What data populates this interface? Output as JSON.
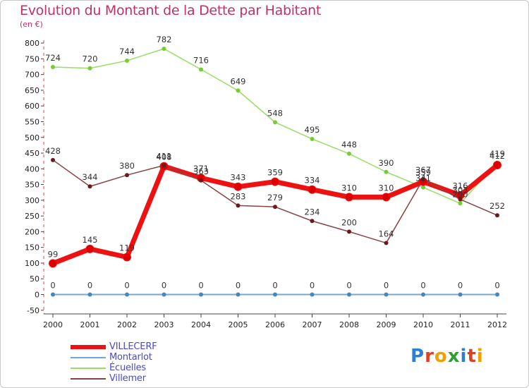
{
  "title": "Evolution du Montant de la Dette par Habitant",
  "subtitle": "(en €)",
  "brand": {
    "letters": [
      "P",
      "r",
      "o",
      "x",
      "i",
      "t",
      "i"
    ],
    "colors": [
      "#2d7fd1",
      "#e04020",
      "#f0a000",
      "#30a030",
      "#2d7fd1",
      "#e04020",
      "#f0a000"
    ]
  },
  "chart_data": {
    "type": "line",
    "title": "Evolution du Montant de la Dette par Habitant",
    "ylabel": "(en €)",
    "xlabel": "",
    "x": [
      "2000",
      "2001",
      "2002",
      "2003",
      "2004",
      "2005",
      "2006",
      "2007",
      "2008",
      "2009",
      "2010",
      "2011",
      "2012"
    ],
    "yticks": [
      -50,
      0,
      50,
      100,
      150,
      200,
      250,
      300,
      350,
      400,
      450,
      500,
      550,
      600,
      650,
      700,
      750,
      800
    ],
    "ylim": [
      -50,
      810
    ],
    "grid": false,
    "legend_position": "bottom-left",
    "series": [
      {
        "name": "VILLECERF",
        "color": "#ee1111",
        "width": 7,
        "marker_color": "#dd0000",
        "values": [
          99,
          145,
          119,
          408,
          371,
          343,
          359,
          334,
          310,
          310,
          359,
          316,
          412
        ],
        "labels": [
          "99",
          "145",
          "119",
          "408",
          "371",
          "343",
          "359",
          "334",
          "310",
          "310",
          "359",
          "316",
          "412"
        ]
      },
      {
        "name": "Montarlot",
        "color": "#6fa8d6",
        "width": 2,
        "marker_color": "#3f88c6",
        "values": [
          0,
          0,
          0,
          0,
          0,
          0,
          0,
          0,
          0,
          0,
          0,
          0,
          0
        ],
        "labels": [
          "0",
          "0",
          "0",
          "0",
          "0",
          "0",
          "0",
          "0",
          "0",
          "0",
          "0",
          "0",
          "0"
        ]
      },
      {
        "name": "Écuelles",
        "color": "#99dd66",
        "width": 1.5,
        "marker_color": "#77cc33",
        "values": [
          724,
          720,
          744,
          782,
          716,
          649,
          548,
          495,
          448,
          390,
          341,
          290,
          419
        ],
        "labels": [
          "724",
          "720",
          "744",
          "782",
          "716",
          "649",
          "548",
          "495",
          "448",
          "390",
          "341",
          "290",
          "419"
        ]
      },
      {
        "name": "Villemer",
        "color": "#884444",
        "width": 1.5,
        "marker_color": "#6a1a1a",
        "values": [
          428,
          344,
          380,
          411,
          363,
          283,
          279,
          234,
          200,
          164,
          367,
          303,
          252
        ],
        "labels": [
          "428",
          "344",
          "380",
          "411",
          "363",
          "283",
          "279",
          "234",
          "200",
          "164",
          "367",
          "303",
          "252"
        ]
      }
    ]
  }
}
